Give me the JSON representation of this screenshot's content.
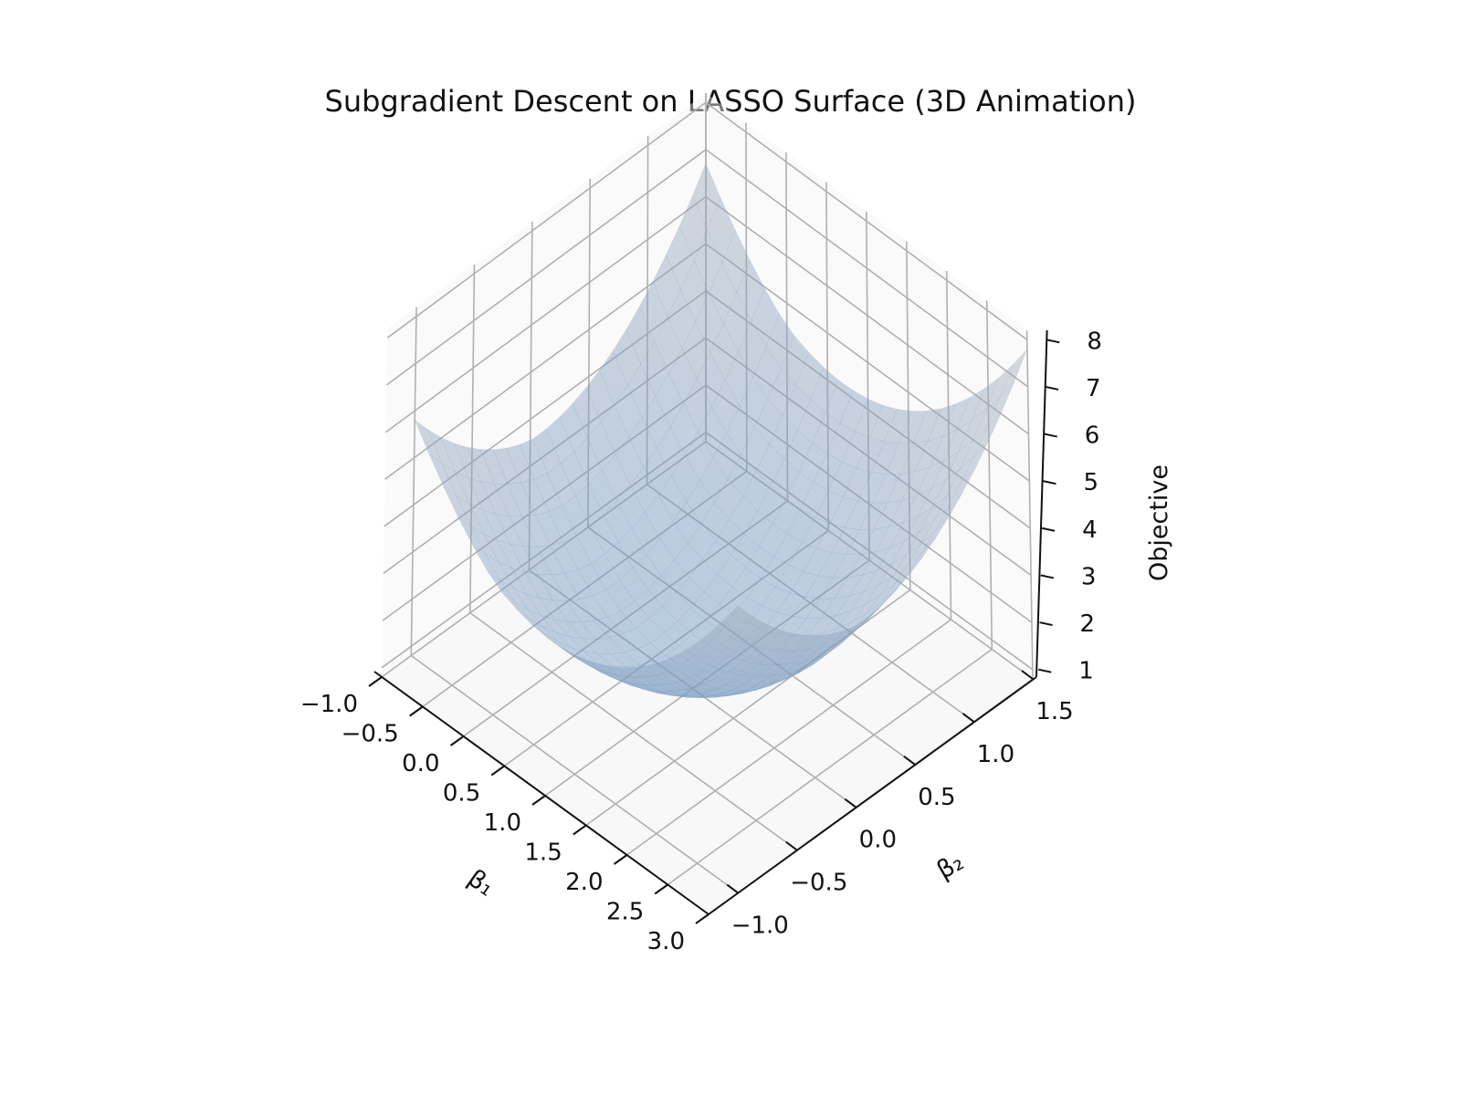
{
  "chart_data": {
    "type": "surface3d",
    "title": "Subgradient Descent on LASSO Surface (3D Animation)",
    "xlabel": "β₁",
    "ylabel": "β₂",
    "zlabel": "Objective",
    "xlim": [
      -1.0,
      3.0
    ],
    "ylim": [
      -1.25,
      1.5
    ],
    "zlim": [
      0.8,
      8.2
    ],
    "x_ticks": [
      -1.0,
      -0.5,
      0.0,
      0.5,
      1.0,
      1.5,
      2.0,
      2.5,
      3.0
    ],
    "x_tick_labels": [
      "−1.0",
      "−0.5",
      "0.0",
      "0.5",
      "1.0",
      "1.5",
      "2.0",
      "2.5",
      "3.0"
    ],
    "y_ticks": [
      -1.0,
      -0.5,
      0.0,
      0.5,
      1.0,
      1.5
    ],
    "y_tick_labels": [
      "−1.0",
      "−0.5",
      "0.0",
      "0.5",
      "1.0",
      "1.5"
    ],
    "z_ticks": [
      1,
      2,
      3,
      4,
      5,
      6,
      7,
      8
    ],
    "z_tick_labels": [
      "1",
      "2",
      "3",
      "4",
      "5",
      "6",
      "7",
      "8"
    ],
    "surface": {
      "x_range": [
        -1.0,
        3.0
      ],
      "y_range": [
        -1.0,
        1.5
      ],
      "min_objective": 1.0,
      "max_objective": 7.8,
      "color": "#7aa7cc",
      "alpha": 0.45
    },
    "grid": true,
    "pane_color": "#f3f3f3",
    "grid_color": "#b0b0b0"
  }
}
